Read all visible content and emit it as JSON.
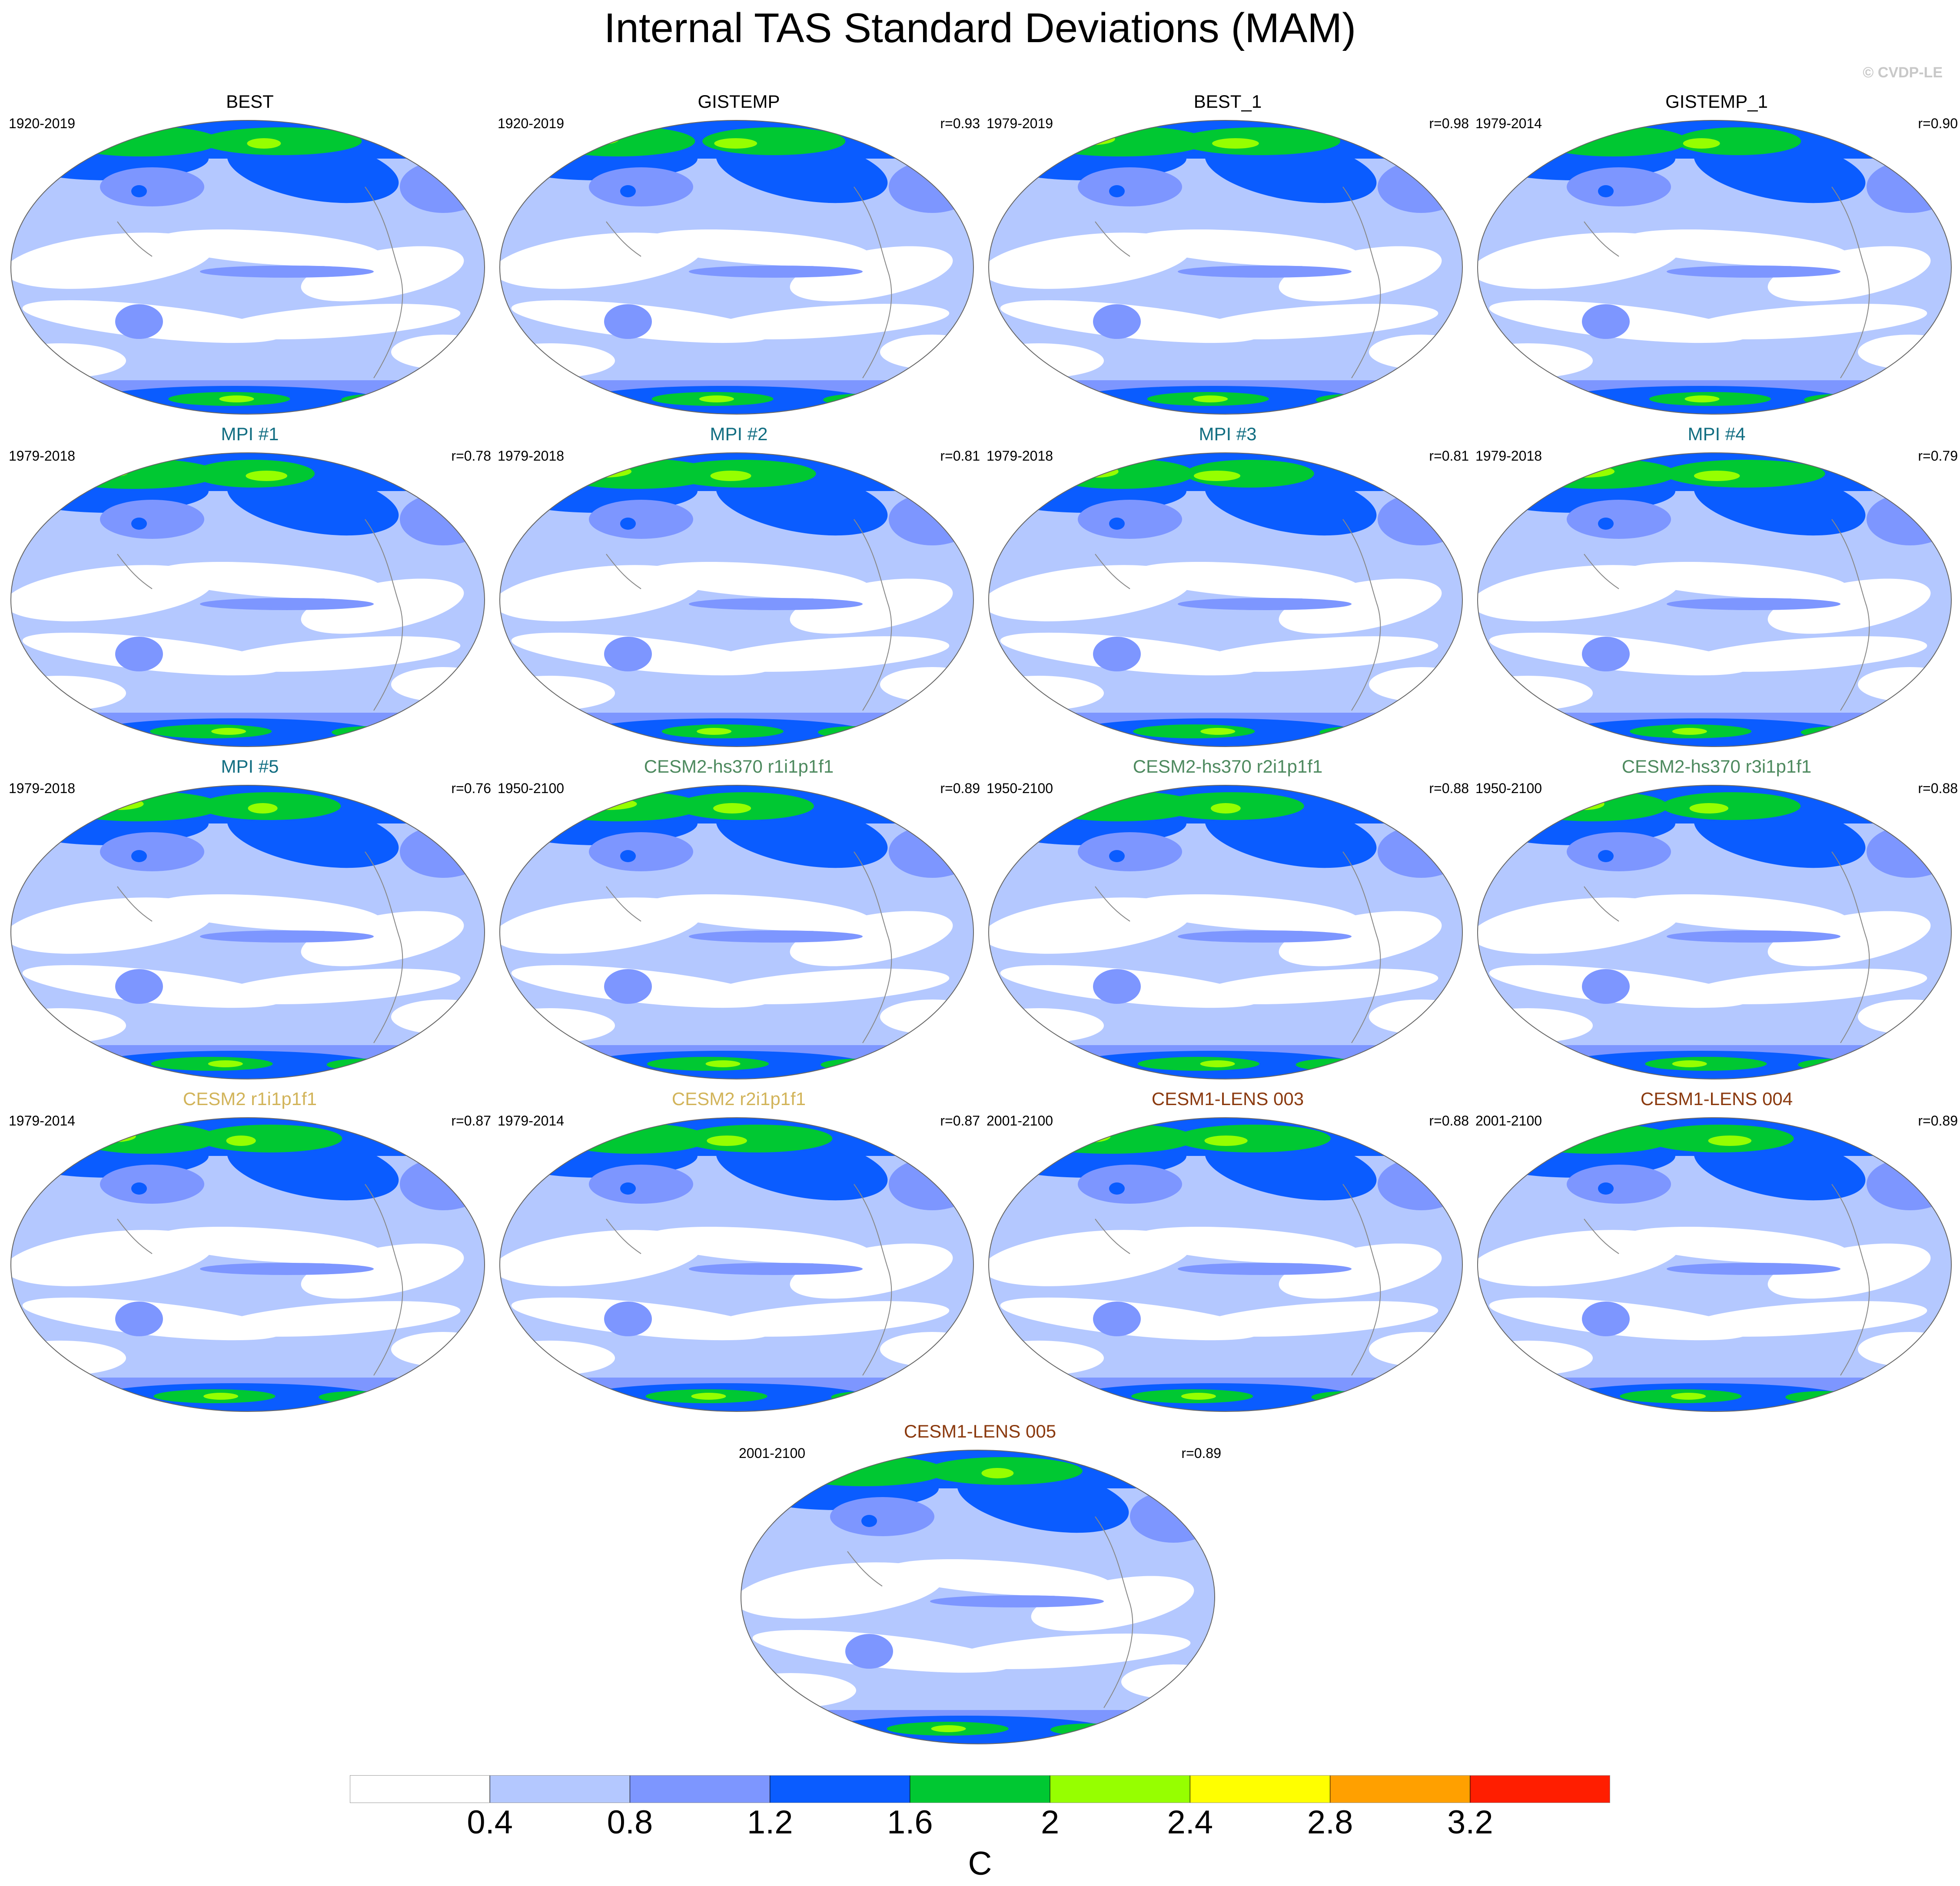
{
  "title": "Internal TAS Standard Deviations (MAM)",
  "copyright": "© CVDP-LE",
  "colors": {
    "levels": [
      "#ffffff",
      "#b4c8ff",
      "#7d96ff",
      "#0a5cff",
      "#00c832",
      "#96ff00",
      "#ffff00",
      "#ffa000",
      "#ff1e00"
    ],
    "title_dark": "#000000",
    "title_mpi": "#126e82",
    "title_cesm2_hs370": "#4e8a5f",
    "title_cesm2": "#d2b45a",
    "title_cesm1": "#8b3a0f"
  },
  "colorbar": {
    "labels": [
      "0.4",
      "0.8",
      "1.2",
      "1.6",
      "2",
      "2.4",
      "2.8",
      "3.2"
    ],
    "units": "C"
  },
  "panels": [
    {
      "title": "BEST",
      "period": "1920-2019",
      "corr": "",
      "title_color": "#000000"
    },
    {
      "title": "GISTEMP",
      "period": "1920-2019",
      "corr": "r=0.93",
      "title_color": "#000000"
    },
    {
      "title": "BEST_1",
      "period": "1979-2019",
      "corr": "r=0.98",
      "title_color": "#000000"
    },
    {
      "title": "GISTEMP_1",
      "period": "1979-2014",
      "corr": "r=0.90",
      "title_color": "#000000"
    },
    {
      "title": "MPI #1",
      "period": "1979-2018",
      "corr": "r=0.78",
      "title_color": "#126e82"
    },
    {
      "title": "MPI #2",
      "period": "1979-2018",
      "corr": "r=0.81",
      "title_color": "#126e82"
    },
    {
      "title": "MPI #3",
      "period": "1979-2018",
      "corr": "r=0.81",
      "title_color": "#126e82"
    },
    {
      "title": "MPI #4",
      "period": "1979-2018",
      "corr": "r=0.79",
      "title_color": "#126e82"
    },
    {
      "title": "MPI #5",
      "period": "1979-2018",
      "corr": "r=0.76",
      "title_color": "#126e82"
    },
    {
      "title": "CESM2-hs370 r1i1p1f1",
      "period": "1950-2100",
      "corr": "r=0.89",
      "title_color": "#4e8a5f"
    },
    {
      "title": "CESM2-hs370 r2i1p1f1",
      "period": "1950-2100",
      "corr": "r=0.88",
      "title_color": "#4e8a5f"
    },
    {
      "title": "CESM2-hs370 r3i1p1f1",
      "period": "1950-2100",
      "corr": "r=0.88",
      "title_color": "#4e8a5f"
    },
    {
      "title": "CESM2 r1i1p1f1",
      "period": "1979-2014",
      "corr": "r=0.87",
      "title_color": "#d2b45a"
    },
    {
      "title": "CESM2 r2i1p1f1",
      "period": "1979-2014",
      "corr": "r=0.87",
      "title_color": "#d2b45a"
    },
    {
      "title": "CESM1-LENS 003",
      "period": "2001-2100",
      "corr": "r=0.88",
      "title_color": "#8b3a0f"
    },
    {
      "title": "CESM1-LENS 004",
      "period": "2001-2100",
      "corr": "r=0.89",
      "title_color": "#8b3a0f"
    },
    {
      "title": "CESM1-LENS 005",
      "period": "2001-2100",
      "corr": "r=0.89",
      "title_color": "#8b3a0f"
    }
  ]
}
